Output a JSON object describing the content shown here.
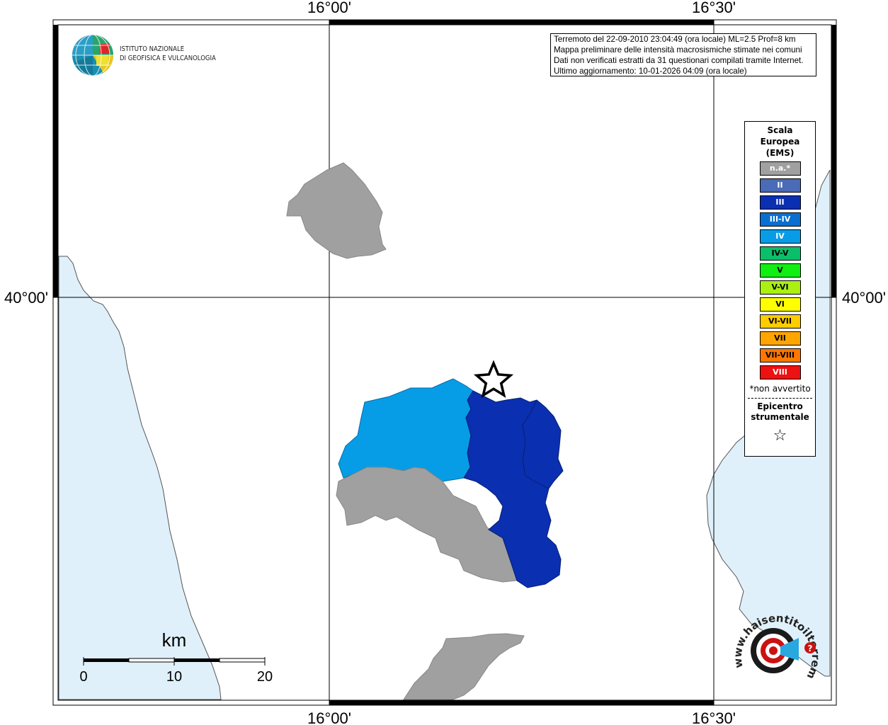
{
  "map": {
    "top_ticks": [
      "16°00'",
      "16°30'"
    ],
    "bottom_ticks": [
      "16°00'",
      "16°30'"
    ],
    "left_tick": "40°00'",
    "right_tick": "40°00'"
  },
  "logo": {
    "line1": "ISTITUTO NAZIONALE",
    "line2": "DI GEOFISICA E VULCANOLOGIA",
    "icon": "ingv-globe-icon"
  },
  "info": {
    "line1": "Terremoto del 22-09-2010 23:04:49 (ora locale) ML=2.5 Prof=8 km",
    "line2": "Mappa preliminare delle intensità macrosismiche stimate nei comuni",
    "line3": "Dati non verificati estratti da 31 questionari compilati tramite Internet.",
    "line4": "Ultimo aggiornamento: 10-01-2026 04:09 (ora locale)"
  },
  "legend": {
    "title_line1": "Scala",
    "title_line2": "Europea",
    "title_line3": "(EMS)",
    "items": [
      {
        "label": "n.a.*",
        "color": "#a0a0a0",
        "text_color": "#ffffff"
      },
      {
        "label": "II",
        "color": "#4a6bb5",
        "text_color": "#ffffff"
      },
      {
        "label": "III",
        "color": "#0a2fb0",
        "text_color": "#ffffff"
      },
      {
        "label": "III-IV",
        "color": "#0a6fd0",
        "text_color": "#ffffff"
      },
      {
        "label": "IV",
        "color": "#079de6",
        "text_color": "#ffffff"
      },
      {
        "label": "IV-V",
        "color": "#0bbf6a",
        "text_color": "#000000"
      },
      {
        "label": "V",
        "color": "#11ee11",
        "text_color": "#000000"
      },
      {
        "label": "V-VI",
        "color": "#aaf012",
        "text_color": "#000000"
      },
      {
        "label": "VI",
        "color": "#ffff00",
        "text_color": "#000000"
      },
      {
        "label": "VI-VII",
        "color": "#ffcc00",
        "text_color": "#000000"
      },
      {
        "label": "VII",
        "color": "#ffa500",
        "text_color": "#000000"
      },
      {
        "label": "VII-VIII",
        "color": "#ff7700",
        "text_color": "#000000"
      },
      {
        "label": "VIII",
        "color": "#ee1111",
        "text_color": "#ffffff"
      }
    ],
    "note": "*non avvertito",
    "epicenter_line1": "Epicentro",
    "epicenter_line2": "strumentale",
    "epicenter_symbol": "☆"
  },
  "scalebar": {
    "unit": "km",
    "labels": [
      "0",
      "10",
      "20"
    ]
  },
  "hsit_logo": {
    "text": "www.haisentitoilterremoto.it",
    "icon": "hsit-target-icon"
  },
  "colors": {
    "sea": "#dff0fa",
    "intensity_na": "#a0a0a0",
    "intensity_III": "#0a2fb0",
    "intensity_IV": "#079de6"
  }
}
